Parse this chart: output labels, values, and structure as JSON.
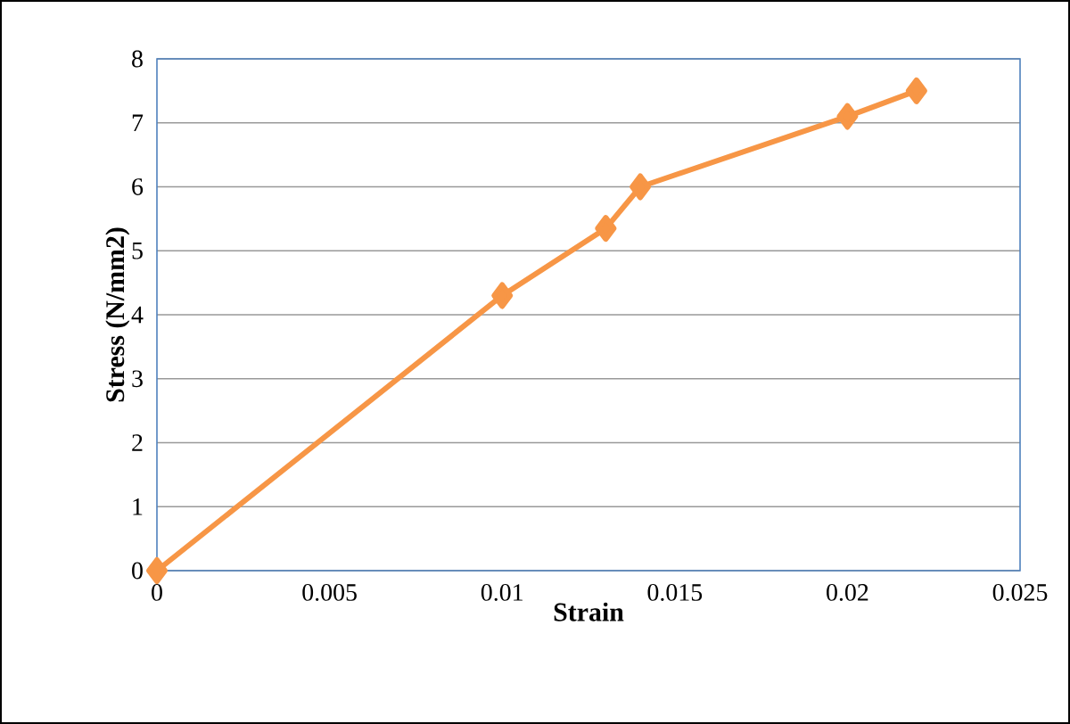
{
  "chart_data": {
    "type": "line",
    "xlabel": "Strain",
    "ylabel": "Stress (N/mm2)",
    "x": [
      0,
      0.01,
      0.013,
      0.014,
      0.02,
      0.022
    ],
    "values": [
      0,
      4.3,
      5.35,
      6.0,
      7.1,
      7.5
    ],
    "color": "#f79646",
    "marker": "diamond",
    "line_style": "solid",
    "grid": "y",
    "xlim": [
      0,
      0.025
    ],
    "ylim": [
      0,
      8
    ],
    "xticks": [
      0,
      0.005,
      0.01,
      0.015,
      0.02,
      0.025
    ],
    "yticks": [
      0,
      1,
      2,
      3,
      4,
      5,
      6,
      7,
      8
    ]
  }
}
